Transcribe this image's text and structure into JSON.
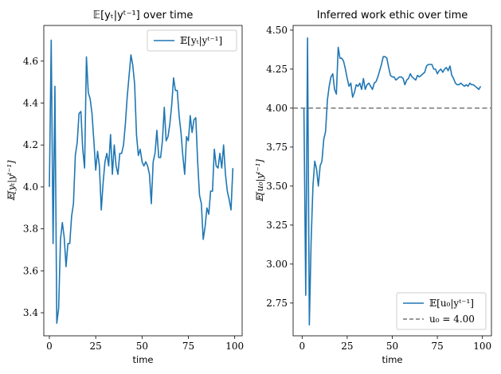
{
  "chart_data": [
    {
      "type": "line",
      "title": "𝔼[yₜ|yᵗ⁻¹] over time",
      "xlabel": "time",
      "ylabel": "𝔼[yₜ|yᵗ⁻¹]",
      "xlim": [
        -3,
        104
      ],
      "ylim": [
        3.29,
        4.77
      ],
      "xticks": [
        0,
        25,
        50,
        75,
        100
      ],
      "yticks": [
        3.4,
        3.6,
        3.8,
        4.0,
        4.2,
        4.4,
        4.6
      ],
      "ytick_labels": [
        "3.4",
        "3.6",
        "3.8",
        "4.0",
        "4.2",
        "4.4",
        "4.6"
      ],
      "legend_position": "top-right",
      "series": [
        {
          "name": "𝔼[yₜ|yᵗ⁻¹]",
          "color": "#1f77b4",
          "x": [
            0,
            1,
            2,
            3,
            4,
            5,
            6,
            7,
            8,
            9,
            10,
            11,
            12,
            13,
            14,
            15,
            16,
            17,
            18,
            19,
            20,
            21,
            22,
            23,
            24,
            25,
            26,
            27,
            28,
            29,
            30,
            31,
            32,
            33,
            34,
            35,
            36,
            37,
            38,
            39,
            40,
            41,
            42,
            43,
            44,
            45,
            46,
            47,
            48,
            49,
            50,
            51,
            52,
            53,
            54,
            55,
            56,
            57,
            58,
            59,
            60,
            61,
            62,
            63,
            64,
            65,
            66,
            67,
            68,
            69,
            70,
            71,
            72,
            73,
            74,
            75,
            76,
            77,
            78,
            79,
            80,
            81,
            82,
            83,
            84,
            85,
            86,
            87,
            88,
            89,
            90,
            91,
            92,
            93,
            94,
            95,
            96,
            97,
            98,
            99
          ],
          "values": [
            4.0,
            4.7,
            3.73,
            4.48,
            3.35,
            3.42,
            3.75,
            3.83,
            3.76,
            3.62,
            3.73,
            3.73,
            3.86,
            3.92,
            4.15,
            4.21,
            4.35,
            4.36,
            4.18,
            4.09,
            4.62,
            4.45,
            4.42,
            4.35,
            4.22,
            4.08,
            4.17,
            4.1,
            3.89,
            4.02,
            4.12,
            4.16,
            4.1,
            4.25,
            4.06,
            4.2,
            4.1,
            4.06,
            4.16,
            4.16,
            4.2,
            4.3,
            4.43,
            4.53,
            4.63,
            4.58,
            4.49,
            4.25,
            4.15,
            4.18,
            4.12,
            4.1,
            4.12,
            4.1,
            4.06,
            3.92,
            4.12,
            4.16,
            4.27,
            4.14,
            4.14,
            4.22,
            4.38,
            4.22,
            4.24,
            4.3,
            4.39,
            4.52,
            4.46,
            4.46,
            4.34,
            4.26,
            4.15,
            4.06,
            4.24,
            4.22,
            4.34,
            4.26,
            4.32,
            4.33,
            4.12,
            3.96,
            3.92,
            3.75,
            3.81,
            3.9,
            3.87,
            3.98,
            3.98,
            4.18,
            4.1,
            4.09,
            4.16,
            4.09,
            4.2,
            4.06,
            3.98,
            3.94,
            3.89,
            4.09
          ]
        }
      ]
    },
    {
      "type": "line",
      "title": "Inferred work ethic over time",
      "xlabel": "time",
      "ylabel": "𝔼[u₀|yᵗ⁻¹]",
      "xlim": [
        -5,
        105
      ],
      "ylim": [
        2.54,
        4.53
      ],
      "xticks": [
        0,
        25,
        50,
        75,
        100
      ],
      "yticks": [
        2.75,
        3.0,
        3.25,
        3.5,
        3.75,
        4.0,
        4.25,
        4.5
      ],
      "ytick_labels": [
        "2.75",
        "3.00",
        "3.25",
        "3.50",
        "3.75",
        "4.00",
        "4.25",
        "4.50"
      ],
      "legend_position": "bottom-right",
      "series": [
        {
          "name": "𝔼[u₀|yᵗ⁻¹]",
          "color": "#1f77b4",
          "x": [
            1,
            2,
            3,
            4,
            5,
            6,
            7,
            8,
            9,
            10,
            11,
            12,
            13,
            14,
            15,
            16,
            17,
            18,
            19,
            20,
            21,
            22,
            23,
            24,
            25,
            26,
            27,
            28,
            29,
            30,
            31,
            32,
            33,
            34,
            35,
            36,
            37,
            38,
            39,
            40,
            41,
            42,
            43,
            44,
            45,
            46,
            47,
            48,
            49,
            50,
            51,
            52,
            53,
            54,
            55,
            56,
            57,
            58,
            59,
            60,
            61,
            62,
            63,
            64,
            65,
            66,
            67,
            68,
            69,
            70,
            71,
            72,
            73,
            74,
            75,
            76,
            77,
            78,
            79,
            80,
            81,
            82,
            83,
            84,
            85,
            86,
            87,
            88,
            89,
            90,
            91,
            92,
            93,
            94,
            95,
            96,
            97,
            98,
            99
          ],
          "values": [
            4.0,
            2.8,
            4.45,
            2.61,
            3.15,
            3.5,
            3.66,
            3.61,
            3.5,
            3.63,
            3.66,
            3.8,
            3.85,
            4.05,
            4.14,
            4.2,
            4.22,
            4.12,
            4.09,
            4.39,
            4.32,
            4.32,
            4.3,
            4.25,
            4.19,
            4.14,
            4.16,
            4.07,
            4.1,
            4.15,
            4.14,
            4.16,
            4.12,
            4.19,
            4.12,
            4.15,
            4.16,
            4.14,
            4.12,
            4.16,
            4.17,
            4.2,
            4.24,
            4.28,
            4.33,
            4.33,
            4.32,
            4.26,
            4.21,
            4.2,
            4.2,
            4.18,
            4.19,
            4.2,
            4.2,
            4.19,
            4.15,
            4.18,
            4.19,
            4.22,
            4.2,
            4.19,
            4.18,
            4.21,
            4.2,
            4.21,
            4.22,
            4.23,
            4.27,
            4.28,
            4.28,
            4.28,
            4.25,
            4.25,
            4.22,
            4.24,
            4.25,
            4.23,
            4.25,
            4.26,
            4.24,
            4.27,
            4.21,
            4.19,
            4.16,
            4.15,
            4.15,
            4.16,
            4.15,
            4.14,
            4.15,
            4.14,
            4.16,
            4.15,
            4.15,
            4.14,
            4.13,
            4.12,
            4.14
          ]
        },
        {
          "name": "u₀ = 4.00",
          "color": "#777777",
          "dashed": true,
          "hline": 4.0
        }
      ]
    }
  ]
}
